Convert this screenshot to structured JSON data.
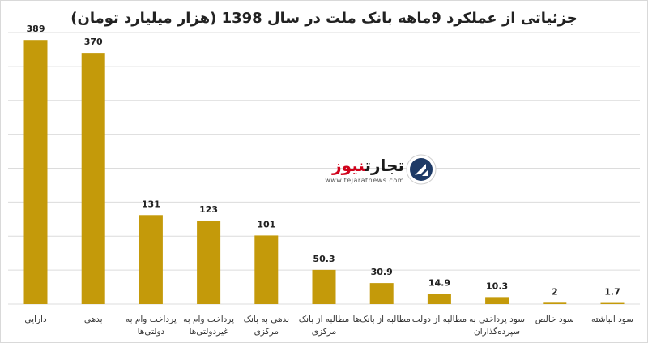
{
  "chart_data": {
    "type": "bar",
    "title": "جزئیاتی از عملکرد 9ماهه بانک ملت در سال 1398 (هزار میلیارد تومان)",
    "categories": [
      [
        "دارایی"
      ],
      [
        "بدهی"
      ],
      [
        "پرداخت وام به",
        "دولتی‌ها"
      ],
      [
        "پرداخت وام به",
        "غیردولتی‌ها"
      ],
      [
        "بدهی به بانک",
        "مرکزی"
      ],
      [
        "مطالبه از بانک",
        "مرکزی"
      ],
      [
        "مطالبه از بانک‌ها"
      ],
      [
        "مطالبه از دولت"
      ],
      [
        "سود پرداختی به",
        "سپرده‌گذاران"
      ],
      [
        "سود خالص"
      ],
      [
        "سود انباشته"
      ]
    ],
    "values": [
      389,
      370,
      131,
      123,
      101,
      50.3,
      30.9,
      14.9,
      10.3,
      2,
      1.7
    ],
    "value_labels": [
      "389",
      "370",
      "131",
      "123",
      "101",
      "50.3",
      "30.9",
      "14.9",
      "10.3",
      "2",
      "1.7"
    ],
    "ylim": [
      0,
      400
    ],
    "y_gridlines": [
      0,
      50,
      100,
      150,
      200,
      250,
      300,
      350,
      400
    ],
    "grid": true,
    "bar_color": "#c49a0a",
    "grid_color": "#dcdcdc"
  },
  "watermark": {
    "name_dark": "تجارت",
    "name_red": "نیوز",
    "url": "www.tejaratnews.com"
  }
}
